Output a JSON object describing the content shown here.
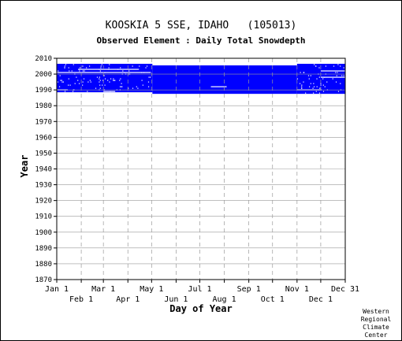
{
  "header": {
    "title": "KOOSKIA 5 SSE, IDAHO   (105013)",
    "subtitle": "Observed Element : Daily Total Snowdepth"
  },
  "credit": {
    "lines": [
      "Western",
      "Regional",
      "Climate",
      "Center"
    ]
  },
  "colors": {
    "data": "#0000ff",
    "grid": "#999999",
    "axis": "#000000",
    "gap": "#ffffff"
  },
  "chart_data": {
    "type": "heatmap",
    "title": "KOOSKIA 5 SSE, IDAHO   (105013)",
    "subtitle": "Observed Element : Daily Total Snowdepth",
    "xlabel": "Day of Year",
    "ylabel": "Year",
    "xlim": [
      1,
      366
    ],
    "ylim": [
      1870,
      2010
    ],
    "yticks": [
      1870,
      1880,
      1890,
      1900,
      1910,
      1920,
      1930,
      1940,
      1950,
      1960,
      1970,
      1980,
      1990,
      2000,
      2010
    ],
    "xticks_top_row": [
      {
        "label": "Jan 1",
        "day": 1
      },
      {
        "label": "Mar 1",
        "day": 60
      },
      {
        "label": "May 1",
        "day": 121
      },
      {
        "label": "Jul 1",
        "day": 182
      },
      {
        "label": "Sep 1",
        "day": 244
      },
      {
        "label": "Nov 1",
        "day": 305
      },
      {
        "label": "Dec 31",
        "day": 366
      }
    ],
    "xticks_bottom_row": [
      {
        "label": "Feb 1",
        "day": 32
      },
      {
        "label": "Apr 1",
        "day": 91
      },
      {
        "label": "Jun 1",
        "day": 152
      },
      {
        "label": "Aug 1",
        "day": 213
      },
      {
        "label": "Oct 1",
        "day": 274
      },
      {
        "label": "Dec 1",
        "day": 335
      }
    ],
    "grid": true,
    "record_span_years": [
      1988,
      2006
    ],
    "blocks": [
      {
        "day_start": 1,
        "day_end": 122,
        "year_start": 1989,
        "year_end": 2006
      },
      {
        "day_start": 122,
        "day_end": 305,
        "year_start": 1988,
        "year_end": 2005
      },
      {
        "day_start": 305,
        "day_end": 366,
        "year_start": 1988,
        "year_end": 2006
      }
    ],
    "missing_segments": [
      {
        "day_start": 1,
        "day_end": 120,
        "year": 2001
      },
      {
        "day_start": 28,
        "day_end": 105,
        "year": 2003
      },
      {
        "day_start": 1,
        "day_end": 15,
        "year": 1990
      },
      {
        "day_start": 60,
        "day_end": 75,
        "year": 1989
      },
      {
        "day_start": 196,
        "day_end": 216,
        "year": 1992
      },
      {
        "day_start": 305,
        "day_end": 335,
        "year": 1990
      },
      {
        "day_start": 335,
        "day_end": 366,
        "year": 1998
      },
      {
        "day_start": 335,
        "day_end": 366,
        "year": 2002
      }
    ]
  }
}
